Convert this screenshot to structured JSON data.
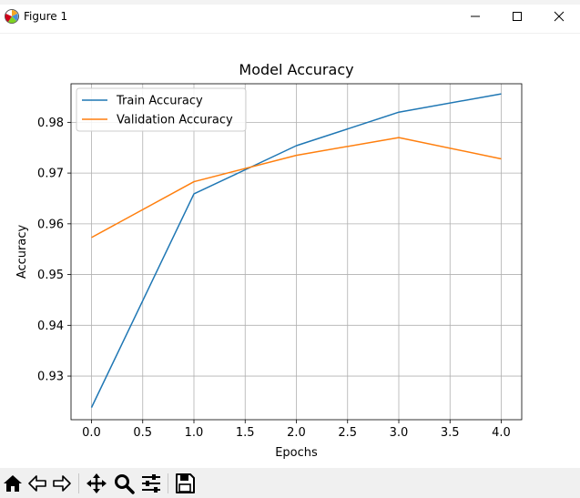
{
  "window": {
    "title": "Figure 1",
    "icon": "matplotlib-figure-icon",
    "controls": [
      "minimize-icon",
      "maximize-icon",
      "close-icon"
    ]
  },
  "toolbar": {
    "tools": [
      "home-icon",
      "back-arrow-icon",
      "forward-arrow-icon",
      "pan-move-icon",
      "zoom-magnifier-icon",
      "configure-subplots-icon",
      "save-disk-icon"
    ]
  },
  "chart_data": {
    "type": "line",
    "title": "Model Accuracy",
    "xlabel": "Epochs",
    "ylabel": "Accuracy",
    "x": [
      0,
      1,
      2,
      3,
      4
    ],
    "xlim": [
      -0.2,
      4.2
    ],
    "ylim": [
      0.9214,
      0.9876
    ],
    "xticks": [
      "0.0",
      "0.5",
      "1.0",
      "1.5",
      "2.0",
      "2.5",
      "3.0",
      "3.5",
      "4.0"
    ],
    "yticks": [
      "0.93",
      "0.94",
      "0.95",
      "0.96",
      "0.97",
      "0.98"
    ],
    "grid": true,
    "legend_position": "top-left",
    "series": [
      {
        "name": "Train Accuracy",
        "color": "#1f77b4",
        "values": [
          0.9238,
          0.9659,
          0.9754,
          0.982,
          0.9856
        ]
      },
      {
        "name": "Validation Accuracy",
        "color": "#ff7f0e",
        "values": [
          0.9573,
          0.9683,
          0.9735,
          0.977,
          0.9728
        ]
      }
    ]
  }
}
